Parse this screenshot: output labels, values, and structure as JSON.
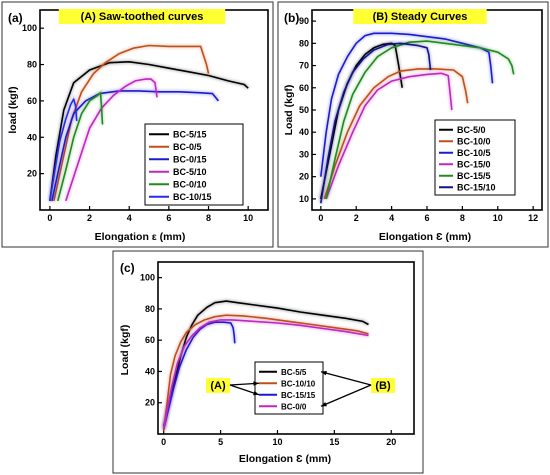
{
  "chart_data": [
    {
      "panel_label": "(a)",
      "title": "(A)   Saw-toothed curves",
      "type": "line",
      "xlabel": "Elongation  ε (mm)",
      "ylabel": "load (kgf)",
      "xlim": [
        -0.5,
        11
      ],
      "ylim": [
        0,
        110
      ],
      "xticks": [
        0,
        2,
        4,
        6,
        8,
        10
      ],
      "yticks": [
        20,
        40,
        60,
        80,
        100
      ],
      "grid": false,
      "legend_position": "lower-right",
      "series": [
        {
          "name": "BC-5/15",
          "color": "#000000",
          "points": [
            [
              0,
              5
            ],
            [
              0.3,
              30
            ],
            [
              0.7,
              55
            ],
            [
              1.2,
              70
            ],
            [
              2,
              77
            ],
            [
              3,
              81
            ],
            [
              4,
              81.5
            ],
            [
              5,
              80
            ],
            [
              6,
              78
            ],
            [
              7,
              76
            ],
            [
              8,
              74
            ],
            [
              9,
              71
            ],
            [
              9.8,
              69
            ],
            [
              10,
              67
            ]
          ]
        },
        {
          "name": "BC-0/5",
          "color": "#c0501a",
          "points": [
            [
              0.2,
              5
            ],
            [
              0.6,
              25
            ],
            [
              1.1,
              50
            ],
            [
              1.6,
              65
            ],
            [
              2.2,
              75
            ],
            [
              2.8,
              81
            ],
            [
              3.5,
              86
            ],
            [
              4.2,
              89
            ],
            [
              5,
              90.5
            ],
            [
              6,
              90
            ],
            [
              7,
              90
            ],
            [
              7.6,
              90
            ],
            [
              7.9,
              80
            ],
            [
              8.0,
              75
            ]
          ]
        },
        {
          "name": "BC-0/15",
          "color": "#1a1ad0",
          "points": [
            [
              0.1,
              5
            ],
            [
              0.4,
              20
            ],
            [
              0.8,
              40
            ],
            [
              1.2,
              53
            ],
            [
              1.8,
              60
            ],
            [
              2.5,
              64
            ],
            [
              3.5,
              65.5
            ],
            [
              4.5,
              65.5
            ],
            [
              5.5,
              65
            ],
            [
              6.5,
              65
            ],
            [
              7.5,
              64.5
            ],
            [
              8.2,
              64
            ],
            [
              8.5,
              60
            ]
          ]
        },
        {
          "name": "BC-5/10",
          "color": "#c026c0",
          "points": [
            [
              0.8,
              5
            ],
            [
              1.4,
              25
            ],
            [
              2,
              45
            ],
            [
              2.6,
              56
            ],
            [
              3.2,
              63
            ],
            [
              3.8,
              68
            ],
            [
              4.3,
              71
            ],
            [
              4.8,
              72
            ],
            [
              5.1,
              72
            ],
            [
              5.3,
              70
            ],
            [
              5.4,
              62
            ]
          ]
        },
        {
          "name": "BC-0/10",
          "color": "#1f8a1f",
          "points": [
            [
              0.4,
              5
            ],
            [
              0.8,
              22
            ],
            [
              1.2,
              40
            ],
            [
              1.6,
              53
            ],
            [
              2,
              60
            ],
            [
              2.4,
              63
            ],
            [
              2.55,
              64.5
            ],
            [
              2.6,
              57
            ],
            [
              2.65,
              47
            ]
          ]
        },
        {
          "name": "BC-10/15",
          "color": "#2a2ae8",
          "points": [
            [
              0,
              5
            ],
            [
              0.25,
              22
            ],
            [
              0.5,
              38
            ],
            [
              0.8,
              50
            ],
            [
              1.05,
              58
            ],
            [
              1.2,
              61
            ],
            [
              1.3,
              57
            ],
            [
              1.35,
              49
            ]
          ]
        }
      ]
    },
    {
      "panel_label": "(b)",
      "title": "(B)   Steady Curves",
      "type": "line",
      "xlabel": "Elongation  Ɛ (mm)",
      "ylabel": "Load (kgf)",
      "xlim": [
        -0.5,
        12.5
      ],
      "ylim": [
        5,
        95
      ],
      "xticks": [
        0,
        2,
        4,
        6,
        8,
        10,
        12
      ],
      "yticks": [
        10,
        20,
        30,
        40,
        50,
        60,
        70,
        80,
        90
      ],
      "grid": false,
      "legend_position": "lower-right",
      "series": [
        {
          "name": "BC-5/0",
          "color": "#000000",
          "points": [
            [
              0,
              10
            ],
            [
              0.5,
              30
            ],
            [
              1,
              50
            ],
            [
              1.5,
              62
            ],
            [
              2,
              70
            ],
            [
              2.5,
              75
            ],
            [
              3,
              78
            ],
            [
              3.5,
              79.5
            ],
            [
              4,
              80
            ],
            [
              4.2,
              79
            ],
            [
              4.4,
              70
            ],
            [
              4.6,
              60
            ]
          ]
        },
        {
          "name": "BC-10/0",
          "color": "#c0501a",
          "points": [
            [
              0.2,
              10
            ],
            [
              0.8,
              25
            ],
            [
              1.5,
              40
            ],
            [
              2.2,
              52
            ],
            [
              3,
              60
            ],
            [
              3.8,
              65
            ],
            [
              4.5,
              67.5
            ],
            [
              5.5,
              68.5
            ],
            [
              6.5,
              68.5
            ],
            [
              7.5,
              68
            ],
            [
              8,
              65
            ],
            [
              8.2,
              58
            ],
            [
              8.3,
              53
            ]
          ]
        },
        {
          "name": "BC-10/5",
          "color": "#1a1ad0",
          "points": [
            [
              0,
              20
            ],
            [
              0.3,
              40
            ],
            [
              0.6,
              55
            ],
            [
              1,
              66
            ],
            [
              1.5,
              74
            ],
            [
              2,
              80
            ],
            [
              2.5,
              83.5
            ],
            [
              3,
              84.5
            ],
            [
              4,
              84.5
            ],
            [
              5,
              84
            ],
            [
              6,
              83
            ],
            [
              7,
              82
            ],
            [
              8,
              80
            ],
            [
              9,
              78
            ],
            [
              9.5,
              76
            ],
            [
              9.6,
              70
            ],
            [
              9.7,
              62
            ]
          ]
        },
        {
          "name": "BC-15/0",
          "color": "#c026c0",
          "points": [
            [
              0.3,
              10
            ],
            [
              1,
              25
            ],
            [
              1.8,
              40
            ],
            [
              2.5,
              52
            ],
            [
              3.2,
              59
            ],
            [
              4,
              63
            ],
            [
              5,
              65
            ],
            [
              6,
              66
            ],
            [
              6.8,
              66.5
            ],
            [
              7.2,
              65.5
            ],
            [
              7.3,
              58
            ],
            [
              7.4,
              50
            ]
          ]
        },
        {
          "name": "BC-15/5",
          "color": "#1f8a1f",
          "points": [
            [
              0.3,
              10
            ],
            [
              0.8,
              28
            ],
            [
              1.3,
              45
            ],
            [
              1.8,
              57
            ],
            [
              2.5,
              67
            ],
            [
              3.2,
              74
            ],
            [
              4,
              78
            ],
            [
              5,
              80.5
            ],
            [
              6,
              81
            ],
            [
              7,
              80
            ],
            [
              8,
              79
            ],
            [
              9,
              78
            ],
            [
              10,
              76
            ],
            [
              10.6,
              73
            ],
            [
              10.8,
              70
            ],
            [
              10.9,
              66
            ]
          ]
        },
        {
          "name": "BC-15/10",
          "color": "#14148a",
          "points": [
            [
              0,
              8
            ],
            [
              0.4,
              28
            ],
            [
              0.8,
              45
            ],
            [
              1.3,
              58
            ],
            [
              1.8,
              67
            ],
            [
              2.4,
              73
            ],
            [
              3,
              77
            ],
            [
              3.8,
              79.5
            ],
            [
              4.5,
              80
            ],
            [
              5.5,
              79
            ],
            [
              6,
              78
            ],
            [
              6.1,
              75
            ],
            [
              6.2,
              68
            ]
          ]
        }
      ]
    },
    {
      "panel_label": "(c)",
      "title": "",
      "type": "line",
      "xlabel": "Elongation  Ɛ (mm)",
      "ylabel": "Load (kgf)",
      "xlim": [
        -0.5,
        22
      ],
      "ylim": [
        0,
        110
      ],
      "xticks": [
        0,
        5,
        10,
        15,
        20
      ],
      "yticks": [
        20,
        40,
        60,
        80,
        100
      ],
      "grid": false,
      "legend_position": "lower-center",
      "annotations": [
        {
          "text": "(A)",
          "side": "left",
          "targets": [
            "BC-10/10",
            "BC-15/15"
          ]
        },
        {
          "text": "(B)",
          "side": "right",
          "targets": [
            "BC-5/5",
            "BC-0/0"
          ]
        }
      ],
      "series": [
        {
          "name": "BC-5/5",
          "color": "#000000",
          "points": [
            [
              0,
              5
            ],
            [
              0.5,
              20
            ],
            [
              1,
              35
            ],
            [
              1.5,
              50
            ],
            [
              2,
              62
            ],
            [
              2.5,
              70
            ],
            [
              3,
              76
            ],
            [
              3.8,
              81
            ],
            [
              4.5,
              84
            ],
            [
              5.5,
              85
            ],
            [
              6.5,
              84
            ],
            [
              8,
              82.5
            ],
            [
              10,
              80.5
            ],
            [
              12,
              78
            ],
            [
              14,
              76
            ],
            [
              16,
              74
            ],
            [
              17.5,
              72
            ],
            [
              18,
              70
            ]
          ]
        },
        {
          "name": "BC-10/10",
          "color": "#c0501a",
          "points": [
            [
              0,
              2
            ],
            [
              0.3,
              20
            ],
            [
              0.6,
              38
            ],
            [
              1,
              50
            ],
            [
              1.5,
              59
            ],
            [
              2,
              65
            ],
            [
              2.8,
              70
            ],
            [
              3.6,
              73
            ],
            [
              4.5,
              75
            ],
            [
              5.5,
              76
            ],
            [
              7,
              75.5
            ],
            [
              9,
              74
            ],
            [
              11,
              72
            ],
            [
              13,
              70
            ],
            [
              15,
              68
            ],
            [
              17,
              66
            ],
            [
              18,
              64
            ]
          ]
        },
        {
          "name": "BC-15/15",
          "color": "#1a1ad0",
          "points": [
            [
              0,
              3
            ],
            [
              0.4,
              15
            ],
            [
              0.9,
              30
            ],
            [
              1.4,
              43
            ],
            [
              2,
              54
            ],
            [
              2.6,
              62
            ],
            [
              3.2,
              67
            ],
            [
              3.8,
              70
            ],
            [
              4.5,
              71.5
            ],
            [
              5.3,
              71.5
            ],
            [
              5.9,
              71
            ],
            [
              6.1,
              68
            ],
            [
              6.2,
              63
            ],
            [
              6.25,
              58
            ]
          ]
        },
        {
          "name": "BC-0/0",
          "color": "#c026c0",
          "points": [
            [
              0,
              3
            ],
            [
              0.3,
              15
            ],
            [
              0.7,
              30
            ],
            [
              1.2,
              45
            ],
            [
              1.8,
              56
            ],
            [
              2.5,
              63
            ],
            [
              3.2,
              68
            ],
            [
              4,
              71.5
            ],
            [
              5,
              73
            ],
            [
              6,
              73
            ],
            [
              8,
              72
            ],
            [
              10,
              71
            ],
            [
              12,
              69.5
            ],
            [
              14,
              67.5
            ],
            [
              16,
              65.5
            ],
            [
              18,
              63
            ]
          ]
        }
      ]
    }
  ]
}
